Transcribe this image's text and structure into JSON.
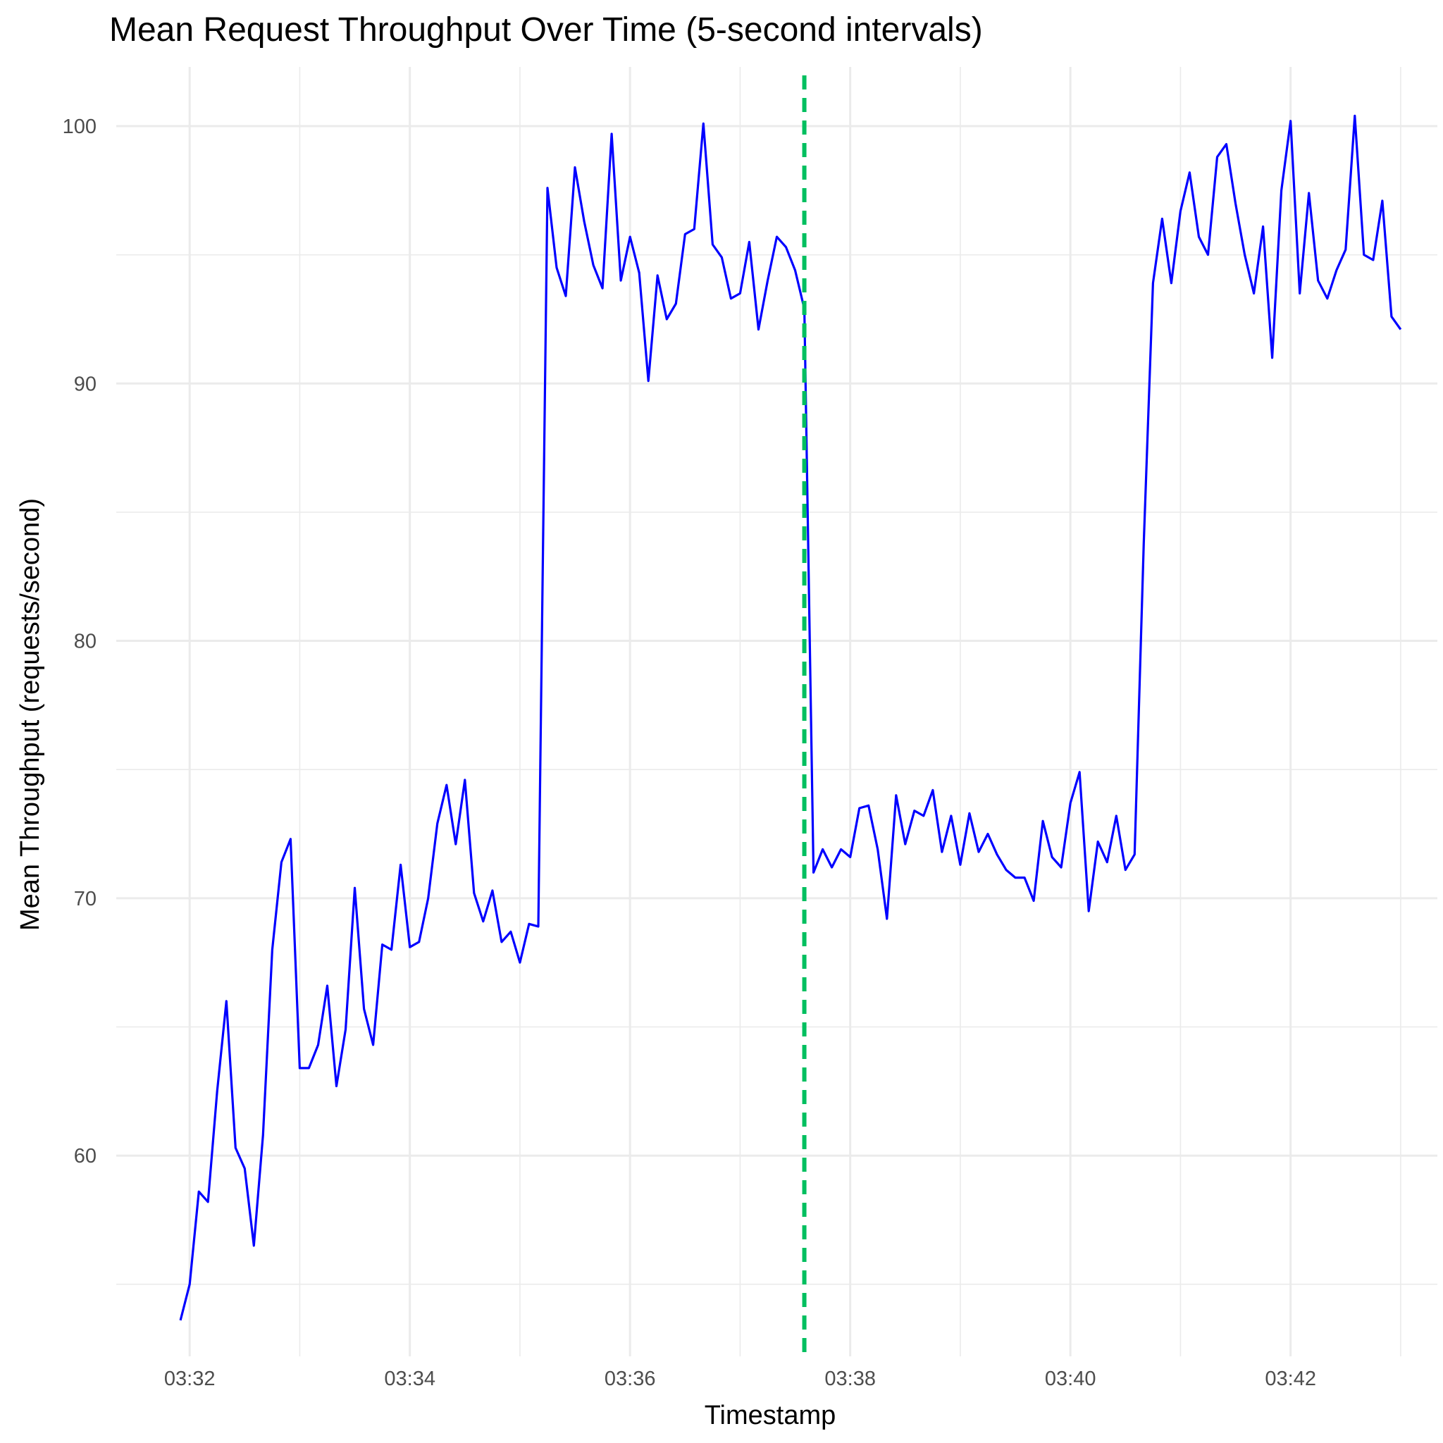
{
  "chart_data": {
    "type": "line",
    "title": "Mean Request Throughput Over Time (5-second intervals)",
    "xlabel": "Timestamp",
    "ylabel": "Mean Throughput (requests/second)",
    "xlim": [
      "03:31:20",
      "03:43:20"
    ],
    "ylim": [
      52.2,
      102.3
    ],
    "x_ticks": [
      "03:32",
      "03:34",
      "03:36",
      "03:38",
      "03:40",
      "03:42"
    ],
    "y_ticks": [
      60,
      70,
      80,
      90,
      100
    ],
    "grid": true,
    "legend": "none",
    "reference_line": {
      "x": "03:37:35",
      "style": "dashed",
      "color": "#00BF5F"
    },
    "series": [
      {
        "color": "#0000FF",
        "x": [
          "03:31:55",
          "03:32:00",
          "03:32:05",
          "03:32:10",
          "03:32:15",
          "03:32:20",
          "03:32:25",
          "03:32:30",
          "03:32:35",
          "03:32:40",
          "03:32:45",
          "03:32:50",
          "03:32:55",
          "03:33:00",
          "03:33:05",
          "03:33:10",
          "03:33:15",
          "03:33:20",
          "03:33:25",
          "03:33:30",
          "03:33:35",
          "03:33:40",
          "03:33:45",
          "03:33:50",
          "03:33:55",
          "03:34:00",
          "03:34:05",
          "03:34:10",
          "03:34:15",
          "03:34:20",
          "03:34:25",
          "03:34:30",
          "03:34:35",
          "03:34:40",
          "03:34:45",
          "03:34:50",
          "03:34:55",
          "03:35:00",
          "03:35:05",
          "03:35:10",
          "03:35:15",
          "03:35:20",
          "03:35:25",
          "03:35:30",
          "03:35:35",
          "03:35:40",
          "03:35:45",
          "03:35:50",
          "03:35:55",
          "03:36:00",
          "03:36:05",
          "03:36:10",
          "03:36:15",
          "03:36:20",
          "03:36:25",
          "03:36:30",
          "03:36:35",
          "03:36:40",
          "03:36:45",
          "03:36:50",
          "03:36:55",
          "03:37:00",
          "03:37:05",
          "03:37:10",
          "03:37:15",
          "03:37:20",
          "03:37:25",
          "03:37:30",
          "03:37:35",
          "03:37:40",
          "03:37:45",
          "03:37:50",
          "03:37:55",
          "03:38:00",
          "03:38:05",
          "03:38:10",
          "03:38:15",
          "03:38:20",
          "03:38:25",
          "03:38:30",
          "03:38:35",
          "03:38:40",
          "03:38:45",
          "03:38:50",
          "03:38:55",
          "03:39:00",
          "03:39:05",
          "03:39:10",
          "03:39:15",
          "03:39:20",
          "03:39:25",
          "03:39:30",
          "03:39:35",
          "03:39:40",
          "03:39:45",
          "03:39:50",
          "03:39:55",
          "03:40:00",
          "03:40:05",
          "03:40:10",
          "03:40:15",
          "03:40:20",
          "03:40:25",
          "03:40:30",
          "03:40:35",
          "03:40:40",
          "03:40:45",
          "03:40:50",
          "03:40:55",
          "03:41:00",
          "03:41:05",
          "03:41:10",
          "03:41:15",
          "03:41:20",
          "03:41:25",
          "03:41:30",
          "03:41:35",
          "03:41:40",
          "03:41:45",
          "03:41:50",
          "03:41:55",
          "03:42:00",
          "03:42:05",
          "03:42:10",
          "03:42:15",
          "03:42:20",
          "03:42:25",
          "03:42:30",
          "03:42:35",
          "03:42:40",
          "03:42:45",
          "03:42:50",
          "03:42:55",
          "03:43:00"
        ],
        "values": [
          53.6,
          55.0,
          58.6,
          58.2,
          62.5,
          66.0,
          60.3,
          59.5,
          56.5,
          60.8,
          68.0,
          71.4,
          72.3,
          63.4,
          63.4,
          64.3,
          66.6,
          62.7,
          64.9,
          70.4,
          65.7,
          64.3,
          68.2,
          68.0,
          71.3,
          68.1,
          68.3,
          70.0,
          72.9,
          74.4,
          72.1,
          74.6,
          70.2,
          69.1,
          70.3,
          68.3,
          68.7,
          67.5,
          69.0,
          68.9,
          97.6,
          94.5,
          93.4,
          98.4,
          96.3,
          94.6,
          93.7,
          99.7,
          94.0,
          95.7,
          94.3,
          90.1,
          94.2,
          92.5,
          93.1,
          95.8,
          96.0,
          100.1,
          95.4,
          94.9,
          93.3,
          93.5,
          95.5,
          92.1,
          94.0,
          95.7,
          95.3,
          94.4,
          92.9,
          71.0,
          71.9,
          71.2,
          71.9,
          71.6,
          73.5,
          73.6,
          71.9,
          69.2,
          74.0,
          72.1,
          73.4,
          73.2,
          74.2,
          71.8,
          73.2,
          71.3,
          73.3,
          71.8,
          72.5,
          71.7,
          71.1,
          70.8,
          70.8,
          69.9,
          73.0,
          71.6,
          71.2,
          73.7,
          74.9,
          69.5,
          72.2,
          71.4,
          73.2,
          71.1,
          71.7,
          83.8,
          93.9,
          96.4,
          93.9,
          96.7,
          98.2,
          95.7,
          95.0,
          98.8,
          99.3,
          97.0,
          95.0,
          93.5,
          96.1,
          91.0,
          97.5,
          100.2,
          93.5,
          97.4,
          94.0,
          93.3,
          94.4,
          95.2,
          100.4,
          95.0,
          94.8,
          97.1,
          92.6,
          92.1
        ]
      }
    ]
  }
}
